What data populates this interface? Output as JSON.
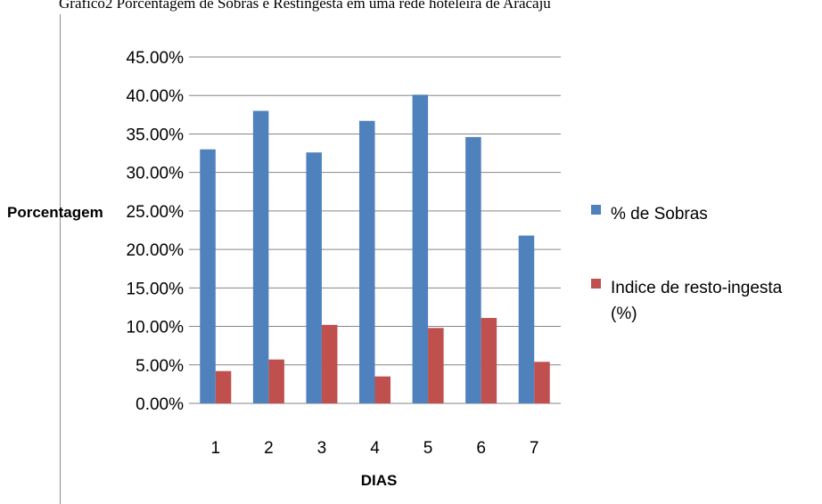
{
  "chart_data": {
    "type": "bar",
    "title": "Gráfico2 Porcentagem de Sobras e Restingesta em uma rede hoteleira de Aracaju",
    "xlabel": "DIAS",
    "ylabel": "Porcentagem",
    "categories": [
      "1",
      "2",
      "3",
      "4",
      "5",
      "6",
      "7"
    ],
    "series": [
      {
        "name": "% de Sobras",
        "color": "#4f81bd",
        "values": [
          33.0,
          38.0,
          32.6,
          36.7,
          40.1,
          34.6,
          21.8
        ]
      },
      {
        "name": "Indice de resto-ingesta (%)",
        "color": "#c0504d",
        "values": [
          4.2,
          5.7,
          10.2,
          3.5,
          9.8,
          11.1,
          5.4
        ]
      }
    ],
    "ylim": [
      0,
      45
    ],
    "yticks": [
      "0.00%",
      "5.00%",
      "10.00%",
      "15.00%",
      "20.00%",
      "25.00%",
      "30.00%",
      "35.00%",
      "40.00%",
      "45.00%"
    ],
    "grid": true,
    "legend": "right",
    "legend_labels": [
      {
        "lines": [
          "% de Sobras"
        ]
      },
      {
        "lines": [
          "Indice de resto-ingesta",
          "(%)"
        ]
      }
    ]
  }
}
